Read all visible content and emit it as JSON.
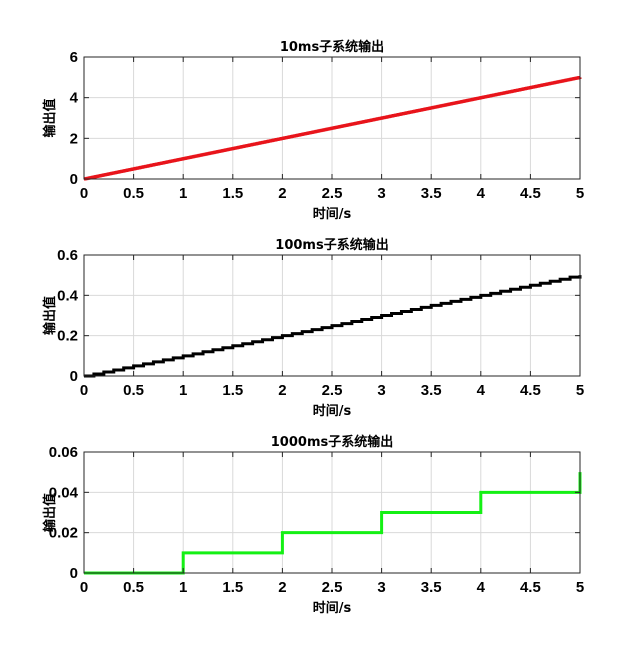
{
  "chart_data": [
    {
      "type": "line",
      "title": "10ms子系统输出",
      "xlabel": "时间/s",
      "ylabel": "输出值",
      "xlim": [
        0,
        5
      ],
      "ylim": [
        0,
        6
      ],
      "xticks": [
        0,
        0.5,
        1,
        1.5,
        2,
        2.5,
        3,
        3.5,
        4,
        4.5,
        5
      ],
      "xtick_labels": [
        "0",
        "0.5",
        "1",
        "1.5",
        "2",
        "2.5",
        "3",
        "3.5",
        "4",
        "4.5",
        "5"
      ],
      "yticks": [
        0,
        2,
        4,
        6
      ],
      "ytick_labels": [
        "0",
        "2",
        "4",
        "6"
      ],
      "grid": true,
      "series": [
        {
          "color": "#e8141b",
          "step": 0.01,
          "x": [
            0,
            5
          ],
          "y": [
            0,
            5
          ]
        }
      ]
    },
    {
      "type": "line",
      "title": "100ms子系统输出",
      "xlabel": "时间/s",
      "ylabel": "输出值",
      "xlim": [
        0,
        5
      ],
      "ylim": [
        0,
        0.6
      ],
      "xticks": [
        0,
        0.5,
        1,
        1.5,
        2,
        2.5,
        3,
        3.5,
        4,
        4.5,
        5
      ],
      "xtick_labels": [
        "0",
        "0.5",
        "1",
        "1.5",
        "2",
        "2.5",
        "3",
        "3.5",
        "4",
        "4.5",
        "5"
      ],
      "yticks": [
        0,
        0.2,
        0.4,
        0.6
      ],
      "ytick_labels": [
        "0",
        "0.2",
        "0.4",
        "0.6"
      ],
      "grid": true,
      "series": [
        {
          "color": "#000000",
          "step": 0.1,
          "x": [
            0,
            5
          ],
          "y": [
            0,
            0.5
          ]
        }
      ]
    },
    {
      "type": "line",
      "title": "1000ms子系统输出",
      "xlabel": "时间/s",
      "ylabel": "输出值",
      "xlim": [
        0,
        5
      ],
      "ylim": [
        0,
        0.06
      ],
      "xticks": [
        0,
        0.5,
        1,
        1.5,
        2,
        2.5,
        3,
        3.5,
        4,
        4.5,
        5
      ],
      "xtick_labels": [
        "0",
        "0.5",
        "1",
        "1.5",
        "2",
        "2.5",
        "3",
        "3.5",
        "4",
        "4.5",
        "5"
      ],
      "yticks": [
        0,
        0.02,
        0.04,
        0.06
      ],
      "ytick_labels": [
        "0",
        "0.02",
        "0.04",
        "0.06"
      ],
      "grid": true,
      "series": [
        {
          "color": "#14f014",
          "step": 1,
          "x": [
            0,
            5
          ],
          "y": [
            0,
            0.05
          ]
        }
      ]
    }
  ]
}
